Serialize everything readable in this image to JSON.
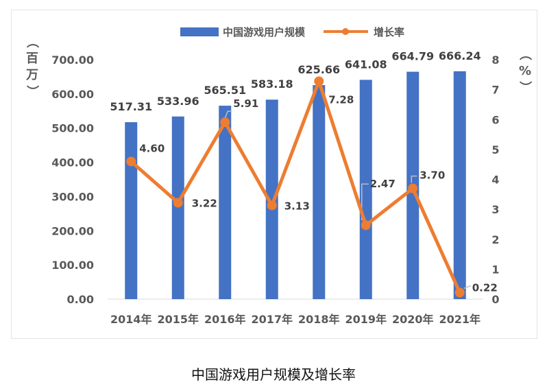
{
  "caption": "中国游戏用户规模及增长率",
  "chart_data": {
    "type": "bar+line",
    "title": "",
    "categories": [
      "2014年",
      "2015年",
      "2016年",
      "2017年",
      "2018年",
      "2019年",
      "2020年",
      "2021年"
    ],
    "series": [
      {
        "name": "中国游戏用户规模",
        "type": "bar",
        "axis": "left",
        "color": "#4472c4",
        "values": [
          517.31,
          533.96,
          565.51,
          583.18,
          625.66,
          641.08,
          664.79,
          666.24
        ],
        "labels": [
          "517.31",
          "533.96",
          "565.51",
          "583.18",
          "625.66",
          "641.08",
          "664.79",
          "666.24"
        ]
      },
      {
        "name": "增长率",
        "type": "line",
        "axis": "right",
        "color": "#ed7d31",
        "values": [
          4.6,
          3.22,
          5.91,
          3.13,
          7.28,
          2.47,
          3.7,
          0.22
        ],
        "labels": [
          "4.60",
          "3.22",
          "5.91",
          "3.13",
          "7.28",
          "2.47",
          "3.70",
          "0.22"
        ]
      }
    ],
    "y_left": {
      "label": "（百万）",
      "lim": [
        0,
        700
      ],
      "ticks": [
        "0.00",
        "100.00",
        "200.00",
        "300.00",
        "400.00",
        "500.00",
        "600.00",
        "700.00"
      ]
    },
    "y_right": {
      "label": "（%）",
      "lim": [
        0,
        8
      ],
      "ticks": [
        "0",
        "1",
        "2",
        "3",
        "4",
        "5",
        "6",
        "7",
        "8"
      ]
    },
    "legend_position": "top-center",
    "grid": false
  }
}
